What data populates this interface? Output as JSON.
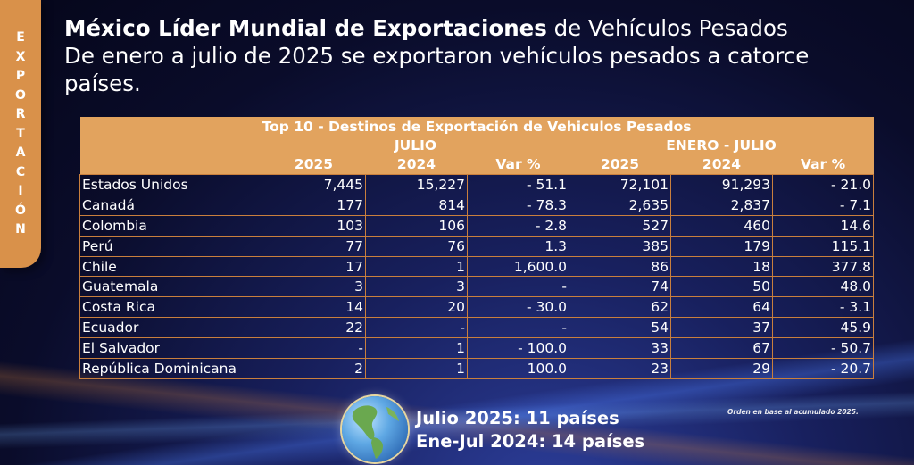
{
  "side_label": "EXPORTACIÓN",
  "title": {
    "bold": "México Líder Mundial de Exportaciones",
    "normal": " de Vehículos Pesados",
    "line2": "De enero a julio de 2025 se exportaron vehículos pesados a catorce países."
  },
  "table": {
    "title": "Top 10 - Destinos de Exportación de Vehiculos Pesados",
    "group1": "JULIO",
    "group2": "ENERO - JULIO",
    "cols": [
      "2025",
      "2024",
      "Var %",
      "2025",
      "2024",
      "Var %"
    ],
    "rows": [
      {
        "country": "Estados Unidos",
        "v": [
          "7,445",
          "15,227",
          "- 51.1",
          "72,101",
          "91,293",
          "- 21.0"
        ]
      },
      {
        "country": "Canadá",
        "v": [
          "177",
          "814",
          "- 78.3",
          "2,635",
          "2,837",
          "- 7.1"
        ]
      },
      {
        "country": "Colombia",
        "v": [
          "103",
          "106",
          "- 2.8",
          "527",
          "460",
          "14.6"
        ]
      },
      {
        "country": "Perú",
        "v": [
          "77",
          "76",
          "1.3",
          "385",
          "179",
          "115.1"
        ]
      },
      {
        "country": "Chile",
        "v": [
          "17",
          "1",
          "1,600.0",
          "86",
          "18",
          "377.8"
        ]
      },
      {
        "country": "Guatemala",
        "v": [
          "3",
          "3",
          "-",
          "74",
          "50",
          "48.0"
        ]
      },
      {
        "country": "Costa Rica",
        "v": [
          "14",
          "20",
          "- 30.0",
          "62",
          "64",
          "- 3.1"
        ]
      },
      {
        "country": "Ecuador",
        "v": [
          "22",
          "-",
          "-",
          "54",
          "37",
          "45.9"
        ]
      },
      {
        "country": "El Salvador",
        "v": [
          "-",
          "1",
          "- 100.0",
          "33",
          "67",
          "- 50.7"
        ]
      },
      {
        "country": "República Dominicana",
        "v": [
          "2",
          "1",
          "100.0",
          "23",
          "29",
          "- 20.7"
        ]
      }
    ]
  },
  "summary": {
    "line1": "Julio 2025: 11 países",
    "line2": "Ene-Jul 2024: 14 países"
  },
  "note": "Orden en base al acumulado 2025.",
  "colors": {
    "accent": "#e2a35e",
    "tab": "#d9914a",
    "background": "#0a0c2a"
  }
}
